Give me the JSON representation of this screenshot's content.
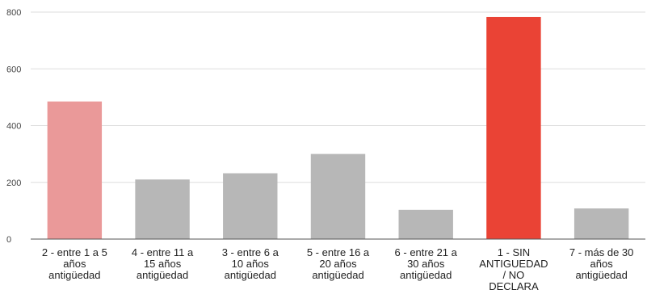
{
  "chart_data": {
    "type": "bar",
    "title": "",
    "xlabel": "",
    "ylabel": "",
    "ylim": [
      0,
      800
    ],
    "yticks": [
      0,
      200,
      400,
      600,
      800
    ],
    "grid": true,
    "legend": "none",
    "categories": [
      "2 - entre 1 a 5 años antigüedad",
      "4 - entre 11 a 15 años antigüedad",
      "3 - entre 6 a 10 años antigüedad",
      "5 - entre 16 a 20 años antigüedad",
      "6 - entre 21 a 30 años antigüedad",
      "1 - SIN ANTIGUEDAD / NO DECLARA",
      "7 - más de 30 años antigüedad"
    ],
    "category_lines": [
      [
        "2 - entre 1 a 5",
        "años",
        "antigüedad"
      ],
      [
        "4 - entre 11 a",
        "15 años",
        "antigüedad"
      ],
      [
        "3 - entre 6 a",
        "10 años",
        "antigüedad"
      ],
      [
        "5 - entre 16 a",
        "20 años",
        "antigüedad"
      ],
      [
        "6 - entre 21 a",
        "30 años",
        "antigüedad"
      ],
      [
        "1 - SIN",
        "ANTIGUEDAD",
        "/ NO",
        "DECLARA"
      ],
      [
        "7 - más de 30",
        "años",
        "antigüedad"
      ]
    ],
    "values": [
      485,
      210,
      232,
      300,
      103,
      783,
      108
    ],
    "colors": [
      "#ea9999",
      "#b7b7b7",
      "#b7b7b7",
      "#b7b7b7",
      "#b7b7b7",
      "#ea4335",
      "#b7b7b7"
    ]
  }
}
